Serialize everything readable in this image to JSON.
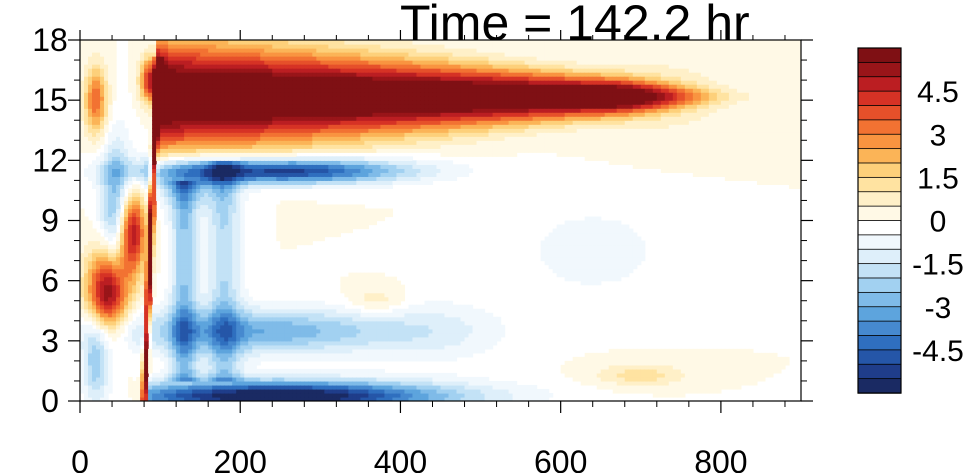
{
  "chart_data": {
    "type": "heatmap",
    "title": "Time = 142.2 hr",
    "xlabel": "",
    "ylabel": "",
    "xlim": [
      0,
      900
    ],
    "ylim": [
      0,
      18
    ],
    "x_ticks": [
      0,
      200,
      400,
      600,
      800
    ],
    "y_ticks": [
      0,
      3,
      6,
      9,
      12,
      15,
      18
    ],
    "colorbar": {
      "labels": [
        "4.5",
        "3",
        "1.5",
        "0",
        "-1.5",
        "-3",
        "-4.5"
      ],
      "levels": [
        -5.5,
        -5,
        -4.5,
        -4,
        -3.5,
        -3,
        -2.5,
        -2,
        -1.5,
        -1,
        -0.5,
        0,
        0.5,
        1,
        1.5,
        2,
        2.5,
        3,
        3.5,
        4,
        4.5,
        5,
        5.5
      ],
      "colors": [
        "#1a2a63",
        "#1f3d8a",
        "#2556a8",
        "#2f6fbf",
        "#4689cf",
        "#5da4dd",
        "#7fbbe8",
        "#a2d1f1",
        "#c3e2f6",
        "#deeffa",
        "#f1f8fd",
        "#ffffff",
        "#fff9e6",
        "#fff0c8",
        "#ffe3a1",
        "#fdd07a",
        "#fbb457",
        "#f99440",
        "#f27232",
        "#e6502a",
        "#d63225",
        "#bb1e22",
        "#991519",
        "#7f1014"
      ]
    },
    "features": [
      {
        "type": "jet",
        "name": "upper positive band",
        "x_range": [
          100,
          780
        ],
        "y_center": 15.2,
        "peak_value": 5.5
      },
      {
        "type": "band",
        "name": "negative band near 11.5",
        "x_range": [
          100,
          420
        ],
        "y_center": 11.5,
        "peak_value": -5.0
      },
      {
        "type": "band",
        "name": "negative surface band",
        "x_range": [
          80,
          600
        ],
        "y_center": 0.3,
        "peak_value": -5.5
      },
      {
        "type": "front",
        "name": "sharp front",
        "x_range": [
          80,
          100
        ],
        "y_range": [
          0,
          17
        ],
        "peak_value": 5.5
      },
      {
        "type": "patch",
        "name": "positive patch",
        "x_range": [
          10,
          60
        ],
        "y_center": 6,
        "peak_value": 5.0
      }
    ]
  }
}
